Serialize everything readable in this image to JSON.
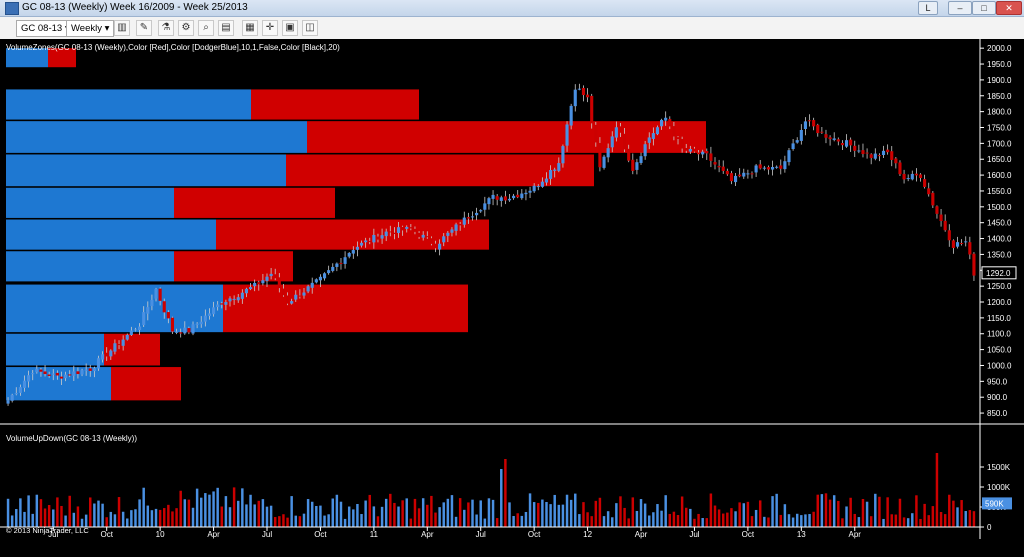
{
  "window": {
    "title": "GC 08-13 (Weekly)  Week 16/2009 - Week 25/2013"
  },
  "toolbar": {
    "instrument": "GC 08-13",
    "period": "Weekly"
  },
  "panel_labels": {
    "price_indicator": "VolumeZones(GC 08-13 (Weekly),Color [Red],Color [DodgerBlue],10,1,False,Color [Black],20)",
    "volume_indicator": "VolumeUpDown(GC 08-13 (Weekly))",
    "copyright": "© 2013 NinjaTrader, LLC"
  },
  "colors": {
    "up": "#4a90e2",
    "down": "#cc0000",
    "zone_up": "#1e78d2",
    "zone_down": "#d00000",
    "background": "#000000",
    "text": "#ffffff"
  },
  "chart_data": [
    {
      "type": "candlestick",
      "title": "",
      "ylim": [
        825,
        2010
      ],
      "y_ticks": [
        850,
        900,
        950,
        1000,
        1050,
        1100,
        1150,
        1200,
        1250,
        1300,
        1350,
        1400,
        1450,
        1500,
        1550,
        1600,
        1650,
        1700,
        1750,
        1800,
        1850,
        1900,
        1950,
        2000
      ],
      "y_tick_labels": [
        "850.0",
        "900.0",
        "950.0",
        "1000.0",
        "1050.0",
        "1100.0",
        "1150.0",
        "1200.0",
        "1250.0",
        "1300.0",
        "1350.0",
        "1400.0",
        "1450.0",
        "1500.0",
        "1550.0",
        "1600.0",
        "1650.0",
        "1700.0",
        "1750.0",
        "1800.0",
        "1850.0",
        "1900.0",
        "1950.0",
        "2000.0"
      ],
      "last_price_label": "1292.0",
      "close_anchor_prices": [
        {
          "week": 0,
          "price": 890
        },
        {
          "week": 6,
          "price": 985
        },
        {
          "week": 12,
          "price": 965
        },
        {
          "week": 20,
          "price": 990
        },
        {
          "week": 26,
          "price": 1060
        },
        {
          "week": 32,
          "price": 1130
        },
        {
          "week": 36,
          "price": 1240
        },
        {
          "week": 40,
          "price": 1110
        },
        {
          "week": 44,
          "price": 1110
        },
        {
          "week": 52,
          "price": 1200
        },
        {
          "week": 60,
          "price": 1250
        },
        {
          "week": 64,
          "price": 1290
        },
        {
          "week": 68,
          "price": 1200
        },
        {
          "week": 76,
          "price": 1270
        },
        {
          "week": 84,
          "price": 1370
        },
        {
          "week": 92,
          "price": 1420
        },
        {
          "week": 98,
          "price": 1430
        },
        {
          "week": 104,
          "price": 1380
        },
        {
          "week": 112,
          "price": 1470
        },
        {
          "week": 118,
          "price": 1530
        },
        {
          "week": 122,
          "price": 1530
        },
        {
          "week": 128,
          "price": 1560
        },
        {
          "week": 134,
          "price": 1640
        },
        {
          "week": 138,
          "price": 1880
        },
        {
          "week": 141,
          "price": 1840
        },
        {
          "week": 144,
          "price": 1620
        },
        {
          "week": 148,
          "price": 1760
        },
        {
          "week": 152,
          "price": 1620
        },
        {
          "week": 156,
          "price": 1720
        },
        {
          "week": 160,
          "price": 1780
        },
        {
          "week": 164,
          "price": 1680
        },
        {
          "week": 170,
          "price": 1660
        },
        {
          "week": 176,
          "price": 1580
        },
        {
          "week": 182,
          "price": 1620
        },
        {
          "week": 188,
          "price": 1620
        },
        {
          "week": 194,
          "price": 1770
        },
        {
          "week": 198,
          "price": 1730
        },
        {
          "week": 204,
          "price": 1700
        },
        {
          "week": 210,
          "price": 1660
        },
        {
          "week": 214,
          "price": 1670
        },
        {
          "week": 218,
          "price": 1590
        },
        {
          "week": 222,
          "price": 1600
        },
        {
          "week": 226,
          "price": 1480
        },
        {
          "week": 230,
          "price": 1380
        },
        {
          "week": 233,
          "price": 1390
        },
        {
          "week": 235,
          "price": 1292
        }
      ],
      "volume_zones": [
        {
          "from": 1940,
          "to": 2000,
          "up": 0.06,
          "down": 0.04
        },
        {
          "from": 1775,
          "to": 1870,
          "up": 0.35,
          "down": 0.24
        },
        {
          "from": 1670,
          "to": 1770,
          "up": 0.43,
          "down": 0.57
        },
        {
          "from": 1565,
          "to": 1665,
          "up": 0.4,
          "down": 0.44
        },
        {
          "from": 1465,
          "to": 1560,
          "up": 0.24,
          "down": 0.23
        },
        {
          "from": 1365,
          "to": 1460,
          "up": 0.3,
          "down": 0.39
        },
        {
          "from": 1265,
          "to": 1360,
          "up": 0.24,
          "down": 0.17
        },
        {
          "from": 1105,
          "to": 1255,
          "up": 0.31,
          "down": 0.35
        },
        {
          "from": 1000,
          "to": 1100,
          "up": 0.14,
          "down": 0.08
        },
        {
          "from": 890,
          "to": 995,
          "up": 0.15,
          "down": 0.1
        }
      ],
      "x_tick_labels": [
        {
          "week": 11,
          "label": "Jul"
        },
        {
          "week": 24,
          "label": "Oct"
        },
        {
          "week": 37,
          "label": "10"
        },
        {
          "week": 50,
          "label": "Apr"
        },
        {
          "week": 63,
          "label": "Jul"
        },
        {
          "week": 76,
          "label": "Oct"
        },
        {
          "week": 89,
          "label": "11"
        },
        {
          "week": 102,
          "label": "Apr"
        },
        {
          "week": 115,
          "label": "Jul"
        },
        {
          "week": 128,
          "label": "Oct"
        },
        {
          "week": 141,
          "label": "12"
        },
        {
          "week": 154,
          "label": "Apr"
        },
        {
          "week": 167,
          "label": "Jul"
        },
        {
          "week": 180,
          "label": "Oct"
        },
        {
          "week": 193,
          "label": "13"
        },
        {
          "week": 206,
          "label": "Apr"
        }
      ]
    },
    {
      "type": "bar",
      "title": "",
      "ylim": [
        0,
        1900000
      ],
      "y_ticks": [
        0,
        500000,
        1000000,
        1500000
      ],
      "y_tick_labels": [
        "0",
        "500K",
        "1000K",
        "1500K"
      ],
      "last_value_label": "590K",
      "notable_spikes": [
        {
          "week": 120,
          "value": 1450000
        },
        {
          "week": 121,
          "value": 1700000
        },
        {
          "week": 226,
          "value": 1850000
        }
      ]
    }
  ]
}
